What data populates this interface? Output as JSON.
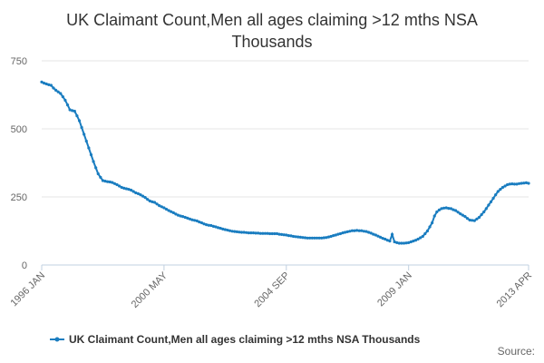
{
  "chart_data": {
    "type": "line",
    "title": "UK Claimant Count,Men all ages claiming >12 mths NSA Thousands",
    "source": "Source:",
    "legend": "bottom",
    "grid": true,
    "ylim": [
      0,
      750
    ],
    "yticks": [
      0,
      250,
      500,
      750
    ],
    "categories": [
      "1996 JAN",
      null,
      null,
      null,
      null,
      null,
      null,
      null,
      null,
      null,
      null,
      null,
      null,
      null,
      null,
      null,
      null,
      null,
      null,
      null,
      null,
      null,
      null,
      null,
      null,
      null,
      null,
      null,
      null,
      null,
      null,
      null,
      null,
      null,
      null,
      null,
      null,
      null,
      null,
      null,
      null,
      null,
      null,
      null,
      null,
      null,
      null,
      null,
      null,
      null,
      null,
      null,
      "2000 MAY",
      null,
      null,
      null,
      null,
      null,
      null,
      null,
      null,
      null,
      null,
      null,
      null,
      null,
      null,
      null,
      null,
      null,
      null,
      null,
      null,
      null,
      null,
      null,
      null,
      null,
      null,
      null,
      null,
      null,
      null,
      null,
      null,
      null,
      null,
      null,
      null,
      null,
      null,
      null,
      null,
      null,
      null,
      null,
      null,
      null,
      null,
      null,
      null,
      null,
      null,
      null,
      "2004 SEP",
      null,
      null,
      null,
      null,
      null,
      null,
      null,
      null,
      null,
      null,
      null,
      null,
      null,
      null,
      null,
      null,
      null,
      null,
      null,
      null,
      null,
      null,
      null,
      null,
      null,
      null,
      null,
      null,
      null,
      null,
      null,
      null,
      null,
      null,
      null,
      null,
      null,
      null,
      null,
      null,
      null,
      null,
      null,
      null,
      null,
      null,
      null,
      null,
      null,
      null,
      null,
      "2009 JAN",
      null,
      null,
      null,
      null,
      null,
      null,
      null,
      null,
      null,
      null,
      null,
      null,
      null,
      null,
      null,
      null,
      null,
      null,
      null,
      null,
      null,
      null,
      null,
      null,
      null,
      null,
      null,
      null,
      null,
      null,
      null,
      null,
      null,
      null,
      null,
      null,
      null,
      null,
      null,
      null,
      null,
      null,
      null,
      null,
      null,
      null,
      null,
      null,
      null,
      null,
      "2013 APR"
    ],
    "series": [
      {
        "name": "UK Claimant Count,Men all ages claiming >12 mths NSA Thousands",
        "color": "#1a7dc0",
        "values": [
          672,
          668,
          665,
          662,
          660,
          650,
          642,
          636,
          630,
          618,
          605,
          588,
          570,
          567,
          565,
          548,
          530,
          505,
          480,
          455,
          430,
          405,
          380,
          357,
          335,
          322,
          310,
          308,
          306,
          305,
          303,
          299,
          295,
          290,
          285,
          282,
          280,
          278,
          275,
          270,
          265,
          262,
          258,
          253,
          248,
          241,
          235,
          232,
          230,
          224,
          218,
          214,
          210,
          205,
          200,
          196,
          192,
          187,
          183,
          180,
          178,
          175,
          172,
          169,
          166,
          164,
          162,
          158,
          155,
          151,
          148,
          146,
          145,
          142,
          140,
          137,
          135,
          132,
          130,
          128,
          126,
          124,
          123,
          122,
          121,
          120,
          120,
          119,
          118,
          118,
          118,
          117,
          117,
          116,
          116,
          116,
          116,
          115,
          115,
          115,
          115,
          113,
          112,
          111,
          110,
          108,
          107,
          105,
          104,
          103,
          102,
          101,
          100,
          99,
          99,
          99,
          99,
          99,
          99,
          99,
          100,
          101,
          103,
          105,
          108,
          110,
          113,
          115,
          118,
          120,
          122,
          124,
          126,
          126,
          127,
          126,
          126,
          124,
          123,
          120,
          117,
          113,
          110,
          106,
          102,
          98,
          95,
          91,
          88,
          112,
          85,
          82,
          80,
          80,
          80,
          81,
          82,
          85,
          88,
          91,
          95,
          100,
          105,
          115,
          125,
          140,
          155,
          180,
          195,
          202,
          207,
          209,
          210,
          208,
          207,
          203,
          200,
          194,
          188,
          183,
          178,
          171,
          165,
          164,
          163,
          169,
          175,
          185,
          195,
          207,
          220,
          232,
          245,
          258,
          270,
          278,
          285,
          290,
          295,
          297,
          298,
          297,
          297,
          299,
          300,
          301,
          302,
          300
        ]
      }
    ]
  }
}
